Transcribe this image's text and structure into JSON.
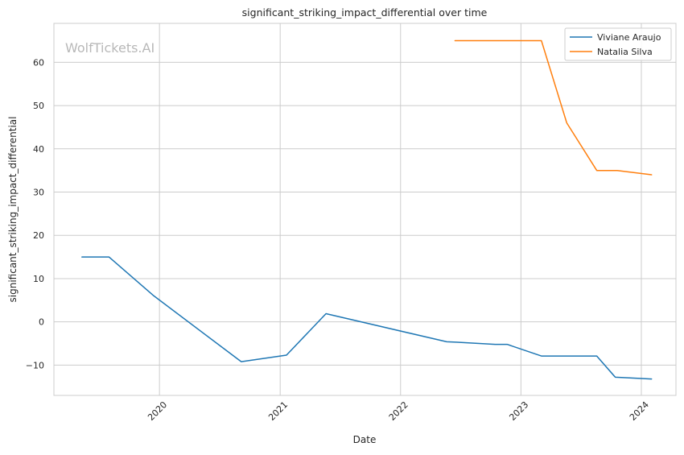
{
  "chart_data": {
    "type": "line",
    "title": "significant_striking_impact_differential over time",
    "xlabel": "Date",
    "ylabel": "significant_striking_impact_differential",
    "watermark": "WolfTickets.AI",
    "xlim": [
      "2019-02-15",
      "2024-04-15"
    ],
    "ylim": [
      -17,
      69
    ],
    "x_ticks": [
      "2020-01-01",
      "2021-01-01",
      "2022-01-01",
      "2023-01-01",
      "2024-01-01"
    ],
    "x_tick_labels": [
      "2020",
      "2021",
      "2022",
      "2023",
      "2024"
    ],
    "y_ticks": [
      -10,
      0,
      10,
      20,
      30,
      40,
      50,
      60
    ],
    "y_tick_labels": [
      "−10",
      "0",
      "10",
      "20",
      "30",
      "40",
      "50",
      "60"
    ],
    "grid": true,
    "legend_position": "top-right",
    "series": [
      {
        "name": "Viviane Araujo",
        "color": "#1f77b4",
        "points": [
          [
            "2019-05-11",
            15
          ],
          [
            "2019-08-01",
            15
          ],
          [
            "2019-12-15",
            6
          ],
          [
            "2020-09-05",
            -9.2
          ],
          [
            "2021-01-20",
            -7.7
          ],
          [
            "2021-05-20",
            1.9
          ],
          [
            "2022-05-21",
            -4.6
          ],
          [
            "2022-06-18",
            -4.7
          ],
          [
            "2022-10-15",
            -5.2
          ],
          [
            "2022-11-20",
            -5.2
          ],
          [
            "2023-03-04",
            -7.9
          ],
          [
            "2023-05-20",
            -7.9
          ],
          [
            "2023-08-19",
            -7.9
          ],
          [
            "2023-10-14",
            -12.8
          ],
          [
            "2024-02-01",
            -13.2
          ]
        ]
      },
      {
        "name": "Natalia Silva",
        "color": "#ff7f0e",
        "points": [
          [
            "2022-06-15",
            65
          ],
          [
            "2023-03-04",
            65
          ],
          [
            "2023-05-20",
            46
          ],
          [
            "2023-08-19",
            35
          ],
          [
            "2023-10-20",
            35
          ],
          [
            "2024-02-01",
            34
          ]
        ]
      }
    ]
  }
}
